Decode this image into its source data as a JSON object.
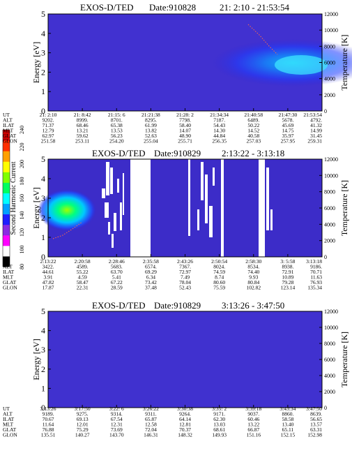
{
  "chart_data": [
    {
      "type": "heatmap",
      "title": "EXOS-D/TED",
      "date_label": "Date:910828",
      "time_range": "21: 2:10 - 21:53:54",
      "ylabel": "Energy [eV]",
      "y2label": "Temperature [K]",
      "ylim": [
        0,
        5
      ],
      "y2lim": [
        0,
        12000
      ],
      "yticks": [
        "0",
        "1",
        "2",
        "3",
        "4",
        "5"
      ],
      "y2ticks": [
        "0",
        "2000",
        "4000",
        "6000",
        "8000",
        "10000",
        "12000"
      ],
      "row_labels": [
        "UT",
        "ALT",
        "ILAT",
        "MLT",
        "GLAT",
        "GLON"
      ],
      "columns": [
        [
          "21: 2:10",
          "9202.",
          "71.37",
          "12.79",
          "62.97",
          "251.58"
        ],
        [
          "21: 8:42",
          "8999.",
          "68.46",
          "13.21",
          "59.62",
          "253.11"
        ],
        [
          "21:15: 6",
          "8701.",
          "65.38",
          "13.53",
          "56.23",
          "254.20"
        ],
        [
          "21:21:38",
          "8295.",
          "61.99",
          "13.82",
          "52.63",
          "255.04"
        ],
        [
          "21:28: 2",
          "7798.",
          "58.40",
          "14.07",
          "48.90",
          "255.71"
        ],
        [
          "21:34:34",
          "7187.",
          "54.43",
          "14.30",
          "44.84",
          "256.35"
        ],
        [
          "21:40:58",
          "6489.",
          "50.22",
          "14.52",
          "40.58",
          "257.03"
        ],
        [
          "21:47:30",
          "5678.",
          "45.69",
          "14.75",
          "35.97",
          "257.95"
        ],
        [
          "21:53:54",
          "4792.",
          "41.32",
          "14.99",
          "31.45",
          "259.31"
        ]
      ]
    },
    {
      "type": "heatmap",
      "title": "EXOS-D/TED",
      "date_label": "Date:910829",
      "time_range": "2:13:22 - 3:13:18",
      "ylabel": "Energy [eV]",
      "y2label": "Temperature [K]",
      "ylim": [
        0,
        5
      ],
      "y2lim": [
        0,
        12000
      ],
      "yticks": [
        "0",
        "1",
        "2",
        "3",
        "4",
        "5"
      ],
      "y2ticks": [
        "0",
        "2000",
        "4000",
        "6000",
        "8000",
        "10000",
        "12000"
      ],
      "row_labels": [
        "UT",
        "ALT",
        "ILAT",
        "MLT",
        "GLAT",
        "GLON"
      ],
      "columns": [
        [
          "2:13:22",
          "3422.",
          "44.61",
          "3.91",
          "47.82",
          "17.87"
        ],
        [
          "2:20:58",
          "4589.",
          "55.22",
          "4.59",
          "58.47",
          "22.31"
        ],
        [
          "2:28:46",
          "5683.",
          "63.70",
          "5.41",
          "67.22",
          "28.59"
        ],
        [
          "2:35:58",
          "6574.",
          "69.29",
          "6.34",
          "73.42",
          "37.48"
        ],
        [
          "2:43:26",
          "7367.",
          "72.97",
          "7.49",
          "78.04",
          "52.43"
        ],
        [
          "2:50:54",
          "8024.",
          "74.59",
          "8.74",
          "80.60",
          "75.59"
        ],
        [
          "2:58:30",
          "8534.",
          "74.40",
          "9.93",
          "80.84",
          "102.82"
        ],
        [
          "3: 5:58",
          "8938.",
          "72.91",
          "10.89",
          "79.28",
          "123.14"
        ],
        [
          "3:13:18",
          "9186.",
          "70.71",
          "11.63",
          "76.93",
          "135.34"
        ]
      ]
    },
    {
      "type": "heatmap",
      "title": "EXOS-D/TED",
      "date_label": "Date:910829",
      "time_range": "3:13:26 - 3:47:50",
      "ylabel": "Energy [eV]",
      "y2label": "Temperature [K]",
      "ylim": [
        0,
        5
      ],
      "y2lim": [
        0,
        12000
      ],
      "yticks": [
        "0",
        "1",
        "2",
        "3",
        "4",
        "5"
      ],
      "y2ticks": [
        "0",
        "2000",
        "4000",
        "6000",
        "8000",
        "10000",
        "12000"
      ],
      "row_labels": [
        "UT",
        "ALT",
        "ILAT",
        "MLT",
        "GLAT",
        "GLON"
      ],
      "columns": [
        [
          "3:13:26",
          "9189.",
          "70.67",
          "11.64",
          "76.88",
          "135.51"
        ],
        [
          "3:17:50",
          "9275.",
          "69.13",
          "12.01",
          "75.29",
          "140.27"
        ],
        [
          "3:22: 6",
          "9314.",
          "67.54",
          "12.31",
          "73.69",
          "143.70"
        ],
        [
          "3:26:22",
          "9311.",
          "65.87",
          "12.58",
          "72.04",
          "146.31"
        ],
        [
          "3:30:38",
          "9264.",
          "64.14",
          "12.81",
          "70.37",
          "148.32"
        ],
        [
          "3:35: 2",
          "9171.",
          "62.30",
          "13.03",
          "68.61",
          "149.93"
        ],
        [
          "3:39:18",
          "9037.",
          "60.46",
          "13.22",
          "66.87",
          "151.16"
        ],
        [
          "3:43:34",
          "8860.",
          "58.58",
          "13.40",
          "65.11",
          "152.15"
        ],
        [
          "3:47:50",
          "8639.",
          "56.65",
          "13.57",
          "63.31",
          "152.98"
        ]
      ]
    }
  ],
  "colorbar": {
    "label": "Second Harmonic Current",
    "ticks": [
      "80",
      "100",
      "120",
      "140",
      "160",
      "180",
      "200",
      "220",
      "240"
    ],
    "colors": [
      "#000000",
      "#ffffff",
      "#ff00ff",
      "#8a2be2",
      "#1e1eff",
      "#00a0ff",
      "#00ffff",
      "#00ff60",
      "#80ff00",
      "#ffff00",
      "#ffa000",
      "#ff3000",
      "#d00000"
    ]
  }
}
